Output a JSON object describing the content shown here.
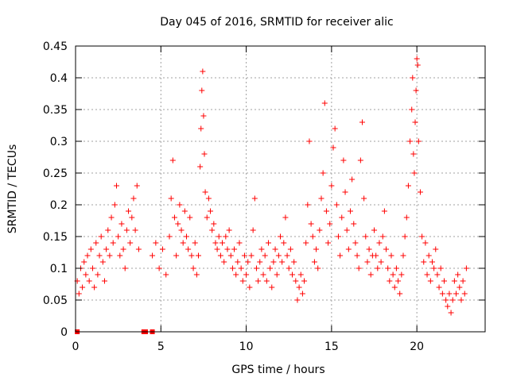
{
  "chart_data": {
    "type": "scatter",
    "title": "Day 045 of 2016, SRMTID for receiver alic",
    "xlabel": "GPS time / hours",
    "ylabel": "SRMTID / TECUs",
    "xlim": [
      0,
      24
    ],
    "ylim": [
      0,
      0.45
    ],
    "xticks": [
      0,
      5,
      10,
      15,
      20
    ],
    "xtick_labels": [
      "0",
      "5",
      "10",
      "15",
      "20"
    ],
    "yticks": [
      0,
      0.05,
      0.1,
      0.15,
      0.2,
      0.25,
      0.3,
      0.35,
      0.4,
      0.45
    ],
    "ytick_labels": [
      "0",
      "0.05",
      "0.1",
      "0.15",
      "0.2",
      "0.25",
      "0.3",
      "0.35",
      "0.4",
      "0.45"
    ],
    "grid": true,
    "marker": "+",
    "color": "#ff0000",
    "series": [
      {
        "name": "SRMTID",
        "points": [
          [
            0.1,
            0.08
          ],
          [
            0.2,
            0.06
          ],
          [
            0.3,
            0.1
          ],
          [
            0.4,
            0.07
          ],
          [
            0.5,
            0.11
          ],
          [
            0.6,
            0.09
          ],
          [
            0.7,
            0.12
          ],
          [
            0.8,
            0.08
          ],
          [
            0.9,
            0.13
          ],
          [
            1.0,
            0.1
          ],
          [
            1.1,
            0.07
          ],
          [
            1.2,
            0.14
          ],
          [
            1.3,
            0.09
          ],
          [
            1.4,
            0.12
          ],
          [
            1.5,
            0.15
          ],
          [
            1.6,
            0.11
          ],
          [
            1.7,
            0.08
          ],
          [
            1.8,
            0.13
          ],
          [
            1.9,
            0.16
          ],
          [
            2.0,
            0.12
          ],
          [
            2.1,
            0.18
          ],
          [
            2.2,
            0.14
          ],
          [
            2.3,
            0.2
          ],
          [
            2.4,
            0.23
          ],
          [
            2.5,
            0.15
          ],
          [
            2.6,
            0.12
          ],
          [
            2.7,
            0.17
          ],
          [
            2.8,
            0.13
          ],
          [
            2.9,
            0.1
          ],
          [
            3.0,
            0.16
          ],
          [
            3.1,
            0.19
          ],
          [
            3.2,
            0.14
          ],
          [
            3.3,
            0.18
          ],
          [
            3.4,
            0.21
          ],
          [
            3.5,
            0.16
          ],
          [
            3.6,
            0.23
          ],
          [
            3.7,
            0.13
          ],
          [
            4.5,
            0.12
          ],
          [
            4.7,
            0.14
          ],
          [
            4.9,
            0.1
          ],
          [
            5.1,
            0.13
          ],
          [
            5.3,
            0.09
          ],
          [
            5.5,
            0.15
          ],
          [
            5.6,
            0.21
          ],
          [
            5.7,
            0.27
          ],
          [
            5.8,
            0.18
          ],
          [
            5.9,
            0.12
          ],
          [
            6.0,
            0.17
          ],
          [
            6.1,
            0.2
          ],
          [
            6.2,
            0.16
          ],
          [
            6.3,
            0.14
          ],
          [
            6.4,
            0.19
          ],
          [
            6.5,
            0.15
          ],
          [
            6.6,
            0.13
          ],
          [
            6.7,
            0.18
          ],
          [
            6.8,
            0.12
          ],
          [
            6.9,
            0.1
          ],
          [
            7.0,
            0.14
          ],
          [
            7.1,
            0.09
          ],
          [
            7.2,
            0.12
          ],
          [
            7.3,
            0.26
          ],
          [
            7.35,
            0.32
          ],
          [
            7.4,
            0.38
          ],
          [
            7.45,
            0.41
          ],
          [
            7.5,
            0.34
          ],
          [
            7.55,
            0.28
          ],
          [
            7.6,
            0.22
          ],
          [
            7.7,
            0.18
          ],
          [
            7.8,
            0.21
          ],
          [
            7.9,
            0.19
          ],
          [
            8.0,
            0.16
          ],
          [
            8.1,
            0.17
          ],
          [
            8.2,
            0.14
          ],
          [
            8.3,
            0.13
          ],
          [
            8.4,
            0.15
          ],
          [
            8.5,
            0.12
          ],
          [
            8.6,
            0.14
          ],
          [
            8.7,
            0.11
          ],
          [
            8.8,
            0.15
          ],
          [
            8.9,
            0.13
          ],
          [
            9.0,
            0.16
          ],
          [
            9.1,
            0.12
          ],
          [
            9.2,
            0.1
          ],
          [
            9.3,
            0.13
          ],
          [
            9.4,
            0.09
          ],
          [
            9.5,
            0.11
          ],
          [
            9.6,
            0.14
          ],
          [
            9.7,
            0.1
          ],
          [
            9.8,
            0.08
          ],
          [
            9.9,
            0.12
          ],
          [
            10.0,
            0.09
          ],
          [
            10.1,
            0.11
          ],
          [
            10.2,
            0.07
          ],
          [
            10.3,
            0.12
          ],
          [
            10.4,
            0.16
          ],
          [
            10.5,
            0.21
          ],
          [
            10.6,
            0.1
          ],
          [
            10.7,
            0.08
          ],
          [
            10.8,
            0.11
          ],
          [
            10.9,
            0.13
          ],
          [
            11.0,
            0.09
          ],
          [
            11.1,
            0.12
          ],
          [
            11.2,
            0.08
          ],
          [
            11.3,
            0.14
          ],
          [
            11.4,
            0.1
          ],
          [
            11.5,
            0.07
          ],
          [
            11.6,
            0.11
          ],
          [
            11.7,
            0.13
          ],
          [
            11.8,
            0.09
          ],
          [
            11.9,
            0.12
          ],
          [
            12.0,
            0.15
          ],
          [
            12.1,
            0.11
          ],
          [
            12.2,
            0.14
          ],
          [
            12.3,
            0.18
          ],
          [
            12.4,
            0.12
          ],
          [
            12.5,
            0.1
          ],
          [
            12.6,
            0.13
          ],
          [
            12.7,
            0.09
          ],
          [
            12.8,
            0.11
          ],
          [
            12.9,
            0.08
          ],
          [
            13.0,
            0.05
          ],
          [
            13.1,
            0.07
          ],
          [
            13.2,
            0.09
          ],
          [
            13.3,
            0.06
          ],
          [
            13.4,
            0.08
          ],
          [
            13.5,
            0.14
          ],
          [
            13.6,
            0.2
          ],
          [
            13.7,
            0.3
          ],
          [
            13.8,
            0.17
          ],
          [
            13.9,
            0.15
          ],
          [
            14.0,
            0.11
          ],
          [
            14.1,
            0.13
          ],
          [
            14.2,
            0.1
          ],
          [
            14.3,
            0.16
          ],
          [
            14.4,
            0.21
          ],
          [
            14.5,
            0.25
          ],
          [
            14.6,
            0.36
          ],
          [
            14.7,
            0.19
          ],
          [
            14.8,
            0.14
          ],
          [
            14.9,
            0.17
          ],
          [
            15.0,
            0.23
          ],
          [
            15.1,
            0.29
          ],
          [
            15.2,
            0.32
          ],
          [
            15.3,
            0.2
          ],
          [
            15.4,
            0.15
          ],
          [
            15.5,
            0.12
          ],
          [
            15.6,
            0.18
          ],
          [
            15.7,
            0.27
          ],
          [
            15.8,
            0.22
          ],
          [
            15.9,
            0.16
          ],
          [
            16.0,
            0.13
          ],
          [
            16.1,
            0.19
          ],
          [
            16.2,
            0.24
          ],
          [
            16.3,
            0.17
          ],
          [
            16.4,
            0.14
          ],
          [
            16.5,
            0.12
          ],
          [
            16.6,
            0.1
          ],
          [
            16.7,
            0.27
          ],
          [
            16.8,
            0.33
          ],
          [
            16.9,
            0.21
          ],
          [
            17.0,
            0.15
          ],
          [
            17.1,
            0.11
          ],
          [
            17.2,
            0.13
          ],
          [
            17.3,
            0.09
          ],
          [
            17.4,
            0.12
          ],
          [
            17.5,
            0.16
          ],
          [
            17.6,
            0.12
          ],
          [
            17.7,
            0.1
          ],
          [
            17.8,
            0.14
          ],
          [
            17.9,
            0.11
          ],
          [
            18.0,
            0.15
          ],
          [
            18.1,
            0.19
          ],
          [
            18.2,
            0.13
          ],
          [
            18.3,
            0.1
          ],
          [
            18.4,
            0.08
          ],
          [
            18.5,
            0.12
          ],
          [
            18.6,
            0.09
          ],
          [
            18.7,
            0.07
          ],
          [
            18.8,
            0.1
          ],
          [
            18.9,
            0.08
          ],
          [
            19.0,
            0.06
          ],
          [
            19.1,
            0.09
          ],
          [
            19.2,
            0.12
          ],
          [
            19.3,
            0.15
          ],
          [
            19.4,
            0.18
          ],
          [
            19.5,
            0.23
          ],
          [
            19.6,
            0.3
          ],
          [
            19.7,
            0.35
          ],
          [
            19.75,
            0.4
          ],
          [
            19.8,
            0.28
          ],
          [
            19.85,
            0.25
          ],
          [
            19.9,
            0.33
          ],
          [
            19.95,
            0.38
          ],
          [
            20.0,
            0.43
          ],
          [
            20.05,
            0.42
          ],
          [
            20.1,
            0.3
          ],
          [
            20.2,
            0.22
          ],
          [
            20.3,
            0.15
          ],
          [
            20.4,
            0.11
          ],
          [
            20.5,
            0.14
          ],
          [
            20.6,
            0.09
          ],
          [
            20.7,
            0.12
          ],
          [
            20.8,
            0.08
          ],
          [
            20.9,
            0.11
          ],
          [
            21.0,
            0.1
          ],
          [
            21.1,
            0.13
          ],
          [
            21.2,
            0.09
          ],
          [
            21.3,
            0.07
          ],
          [
            21.4,
            0.1
          ],
          [
            21.5,
            0.06
          ],
          [
            21.6,
            0.08
          ],
          [
            21.7,
            0.05
          ],
          [
            21.8,
            0.04
          ],
          [
            21.9,
            0.06
          ],
          [
            22.0,
            0.03
          ],
          [
            22.1,
            0.05
          ],
          [
            22.2,
            0.08
          ],
          [
            22.3,
            0.06
          ],
          [
            22.4,
            0.09
          ],
          [
            22.5,
            0.07
          ],
          [
            22.6,
            0.05
          ],
          [
            22.7,
            0.08
          ],
          [
            22.8,
            0.06
          ],
          [
            22.9,
            0.1
          ]
        ],
        "zero_points": [
          0.1,
          4.0,
          4.1,
          4.5
        ]
      }
    ]
  }
}
